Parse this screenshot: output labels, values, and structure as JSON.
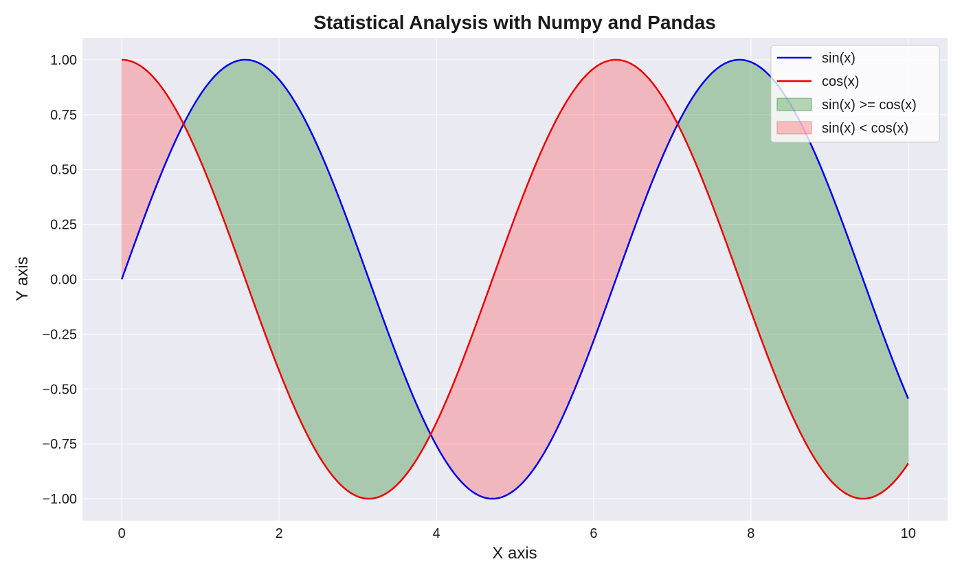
{
  "chart_data": {
    "type": "line",
    "title": "Statistical Analysis with Numpy and Pandas",
    "xlabel": "X axis",
    "ylabel": "Y axis",
    "xlim": [
      -0.5,
      10.5
    ],
    "ylim": [
      -1.1,
      1.1
    ],
    "xticks": [
      0,
      2,
      4,
      6,
      8,
      10
    ],
    "xtick_labels": [
      "0",
      "2",
      "4",
      "6",
      "8",
      "10"
    ],
    "yticks": [
      -1.0,
      -0.75,
      -0.5,
      -0.25,
      0.0,
      0.25,
      0.5,
      0.75,
      1.0
    ],
    "ytick_labels": [
      "−1.00",
      "−0.75",
      "−0.50",
      "−0.25",
      "0.00",
      "0.25",
      "0.50",
      "0.75",
      "1.00"
    ],
    "grid": true,
    "legend_position": "top-right",
    "x_range": [
      0,
      10
    ],
    "series": [
      {
        "name": "sin(x)",
        "function": "sin",
        "color": "#0000ee"
      },
      {
        "name": "cos(x)",
        "function": "cos",
        "color": "#ee0000"
      }
    ],
    "fills": [
      {
        "name": "sin(x) >= cos(x)",
        "condition": "sin>=cos",
        "color": "#2e8b2e"
      },
      {
        "name": "sin(x) < cos(x)",
        "condition": "sin<cos",
        "color": "#ff5a5f"
      }
    ]
  }
}
